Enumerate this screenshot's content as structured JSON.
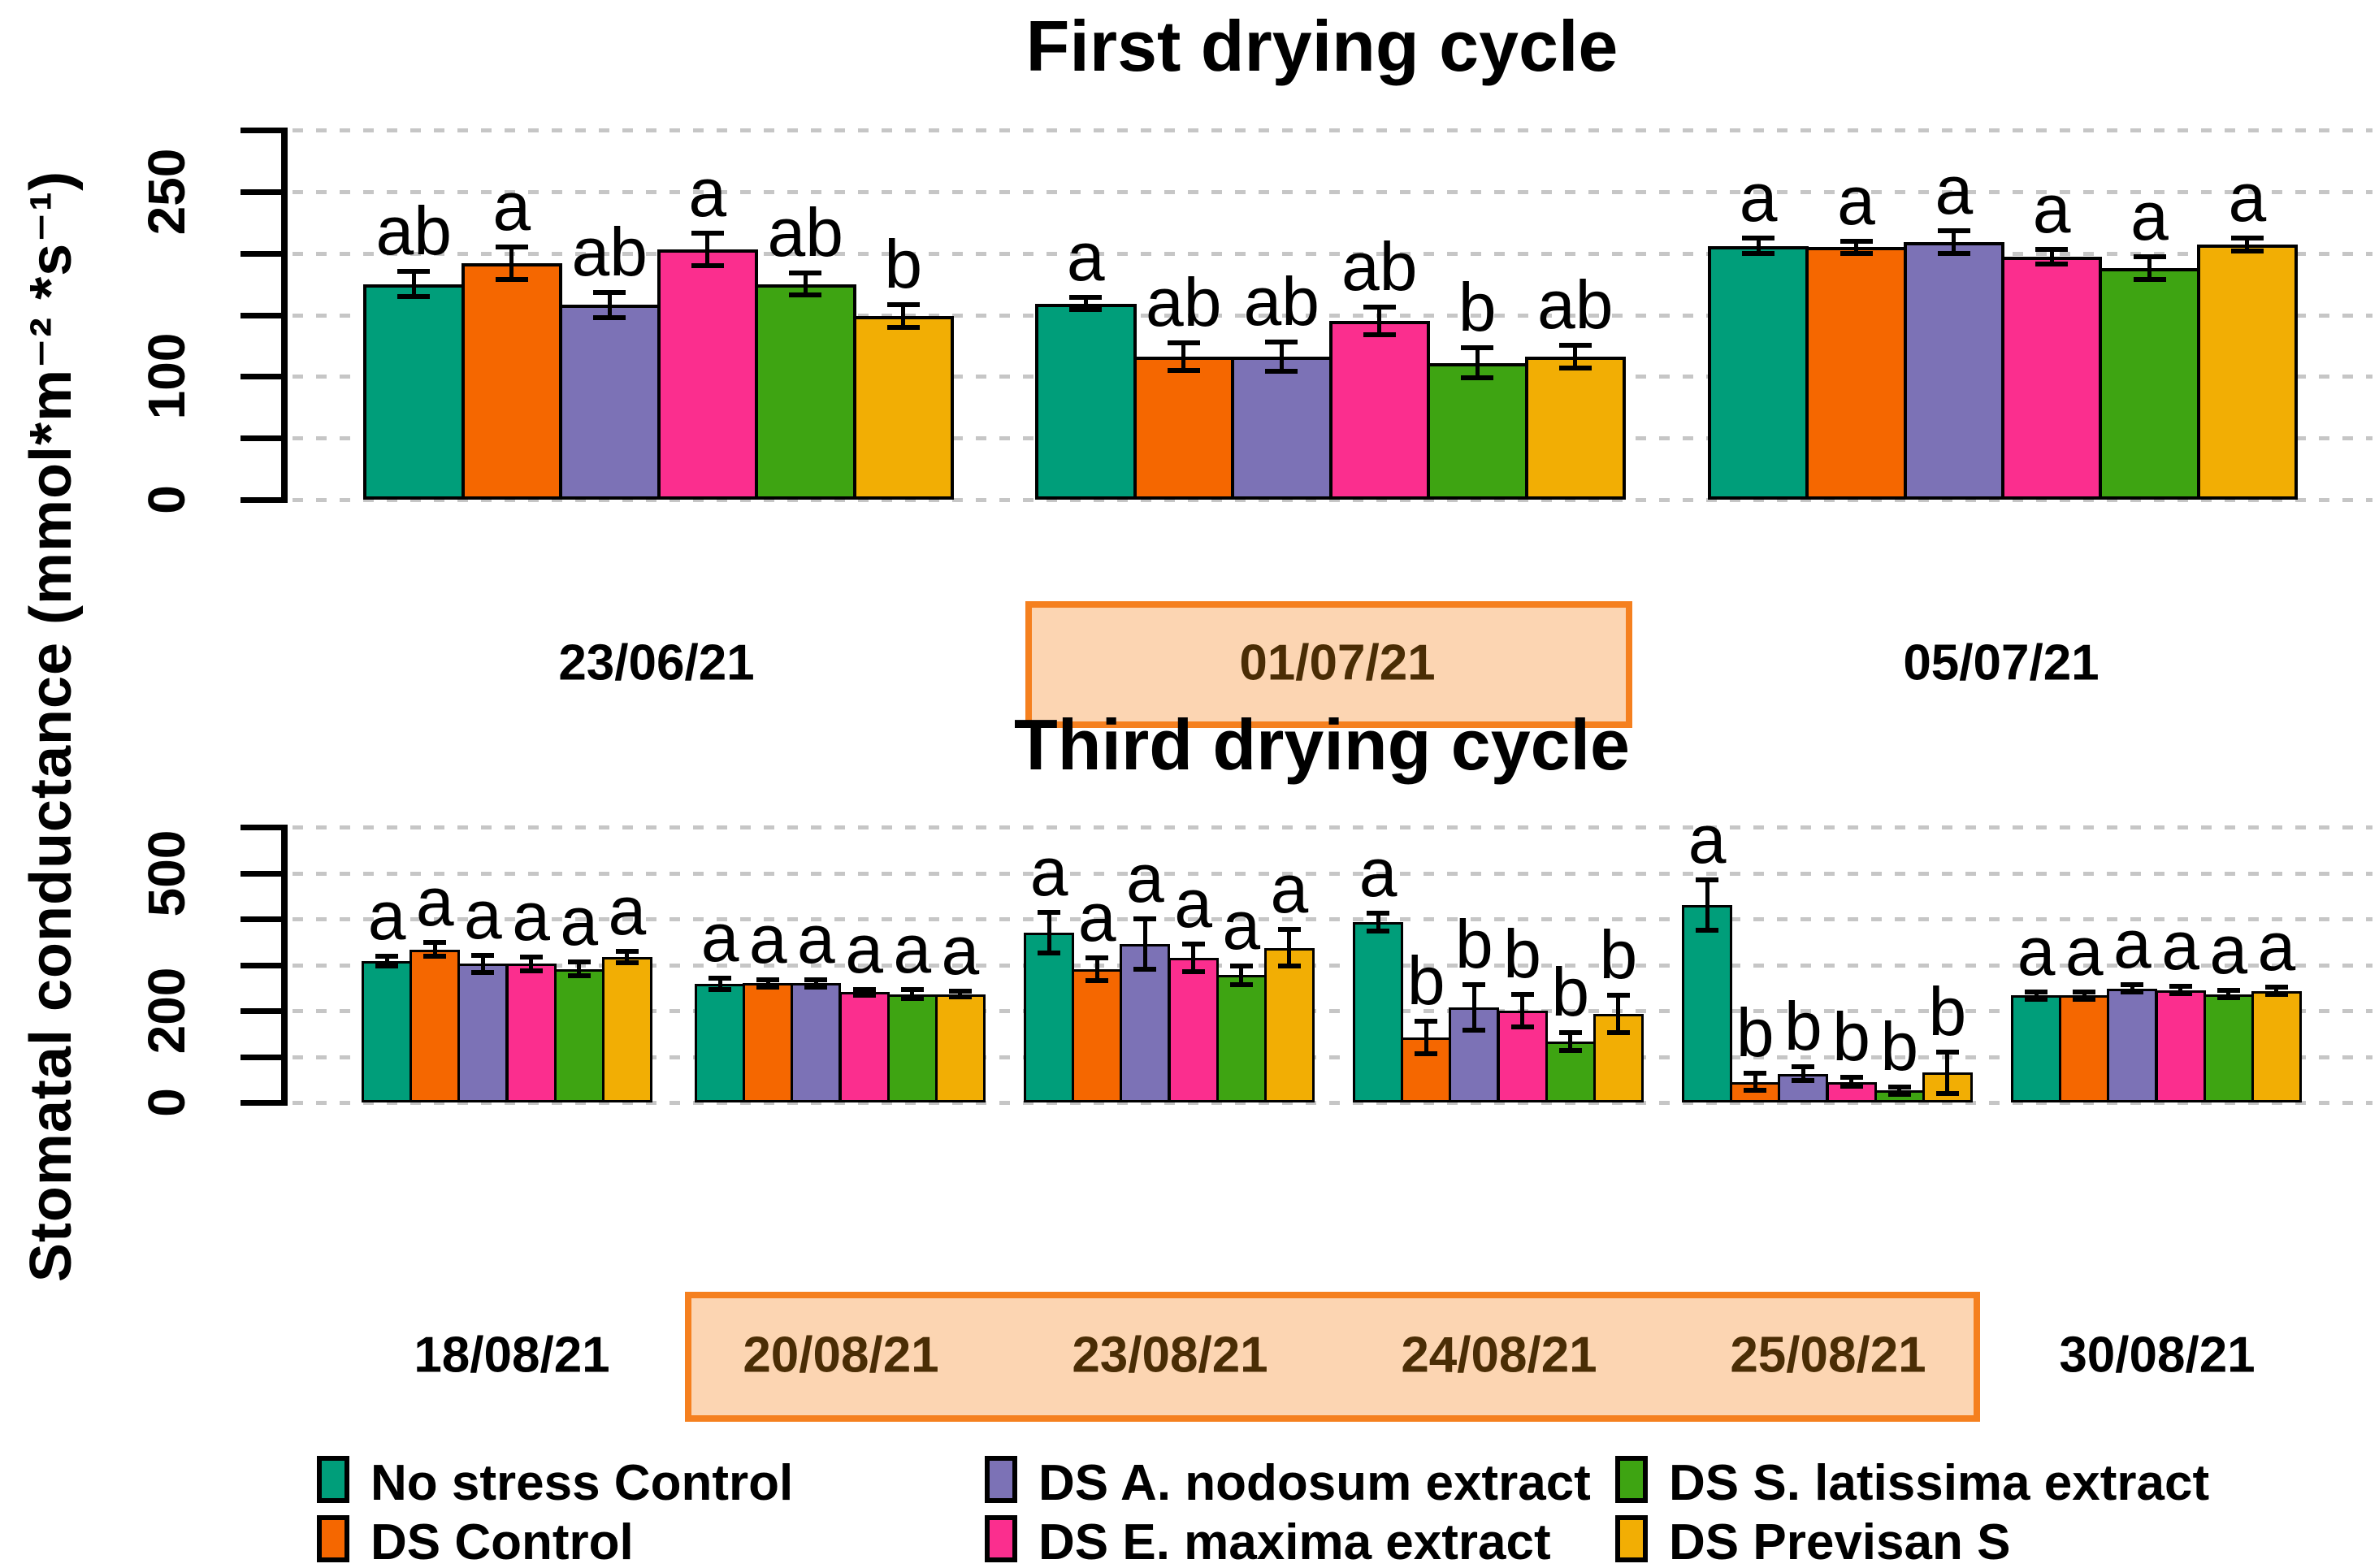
{
  "figure": {
    "y_axis_label": "Stomatal conductance (mmol*m⁻² *s⁻¹)"
  },
  "style": {
    "grid_color": "#c6c6c6",
    "highlight_fill": "#fcd5b2",
    "highlight_border": "#f5801f",
    "boxed_label_color": "#4a2d05"
  },
  "chart_data": [
    {
      "type": "bar",
      "title": "First drying cycle",
      "categories": [
        "23/06/21",
        "01/07/21",
        "05/07/21"
      ],
      "highlighted_categories": [
        "01/07/21"
      ],
      "ylim": [
        0,
        300
      ],
      "ytick_step": 50,
      "ytick_labels_shown": [
        0,
        100,
        250
      ],
      "grid": true,
      "series": [
        {
          "name": "No stress Control",
          "color": "#009E7A",
          "values": [
            175,
            159,
            206
          ],
          "errors": [
            10,
            5,
            6
          ],
          "letters": [
            "ab",
            "a",
            "a"
          ]
        },
        {
          "name": "DS Control",
          "color": "#F56700",
          "values": [
            192,
            116,
            205
          ],
          "errors": [
            13,
            11,
            5
          ],
          "letters": [
            "a",
            "ab",
            "a"
          ]
        },
        {
          "name": "DS A. nodosum extract",
          "color": "#7C72B6",
          "values": [
            158,
            116,
            209
          ],
          "errors": [
            10,
            12,
            9
          ],
          "letters": [
            "ab",
            "ab",
            "a"
          ]
        },
        {
          "name": "DS E. maxima extract",
          "color": "#FB2E8E",
          "values": [
            203,
            145,
            197
          ],
          "errors": [
            13,
            11,
            6
          ],
          "letters": [
            "a",
            "ab",
            "a"
          ]
        },
        {
          "name": "DS S. latissima extract",
          "color": "#3EA412",
          "values": [
            175,
            111,
            188
          ],
          "errors": [
            9,
            12,
            9
          ],
          "letters": [
            "ab",
            "b",
            "a"
          ]
        },
        {
          "name": "DS Previsan S",
          "color": "#F2AE04",
          "values": [
            149,
            116,
            207
          ],
          "errors": [
            9,
            9,
            5
          ],
          "letters": [
            "b",
            "ab",
            "a"
          ]
        }
      ]
    },
    {
      "type": "bar",
      "title": "Third drying cycle",
      "categories": [
        "18/08/21",
        "20/08/21",
        "23/08/21",
        "24/08/21",
        "25/08/21",
        "30/08/21"
      ],
      "highlighted_categories": [
        "20/08/21",
        "23/08/21",
        "24/08/21",
        "25/08/21"
      ],
      "ylim": [
        0,
        600
      ],
      "ytick_step": 100,
      "ytick_labels_shown": [
        0,
        200,
        500
      ],
      "grid": true,
      "series": [
        {
          "name": "No stress Control",
          "color": "#009E7A",
          "values": [
            308,
            258,
            370,
            393,
            430,
            233
          ],
          "errors": [
            10,
            12,
            45,
            20,
            55,
            8
          ],
          "letters": [
            "a",
            "a",
            "a",
            "a",
            "a",
            "a"
          ]
        },
        {
          "name": "DS Control",
          "color": "#F56700",
          "values": [
            333,
            260,
            290,
            142,
            45,
            233
          ],
          "errors": [
            15,
            8,
            25,
            35,
            18,
            8
          ],
          "letters": [
            "a",
            "a",
            "a",
            "b",
            "b",
            "a"
          ]
        },
        {
          "name": "DS A. nodosum extract",
          "color": "#7C72B6",
          "values": [
            302,
            260,
            345,
            207,
            62,
            248
          ],
          "errors": [
            18,
            8,
            55,
            50,
            15,
            8
          ],
          "letters": [
            "a",
            "a",
            "a",
            "b",
            "b",
            "a"
          ]
        },
        {
          "name": "DS E. maxima extract",
          "color": "#FB2E8E",
          "values": [
            302,
            240,
            315,
            200,
            45,
            245
          ],
          "errors": [
            15,
            6,
            30,
            35,
            10,
            8
          ],
          "letters": [
            "a",
            "a",
            "a",
            "b",
            "b",
            "a"
          ]
        },
        {
          "name": "DS S. latissima extract",
          "color": "#3EA412",
          "values": [
            291,
            236,
            277,
            133,
            26,
            236
          ],
          "errors": [
            15,
            10,
            20,
            20,
            8,
            8
          ],
          "letters": [
            "a",
            "a",
            "a",
            "b",
            "b",
            "a"
          ]
        },
        {
          "name": "DS Previsan S",
          "color": "#F2AE04",
          "values": [
            317,
            236,
            337,
            193,
            65,
            243
          ],
          "errors": [
            12,
            6,
            40,
            40,
            45,
            8
          ],
          "letters": [
            "a",
            "a",
            "a",
            "b",
            "b",
            "a"
          ]
        }
      ]
    }
  ],
  "legend": {
    "rows": [
      [
        {
          "label": "No stress Control",
          "color": "#009E7A"
        },
        {
          "label": "DS A. nodosum extract",
          "color": "#7C72B6"
        },
        {
          "label": "DS S. latissima extract",
          "color": "#3EA412"
        }
      ],
      [
        {
          "label": "DS Control",
          "color": "#F56700"
        },
        {
          "label": "DS E. maxima extract",
          "color": "#FB2E8E"
        },
        {
          "label": "DS Previsan S",
          "color": "#F2AE04"
        }
      ]
    ]
  }
}
